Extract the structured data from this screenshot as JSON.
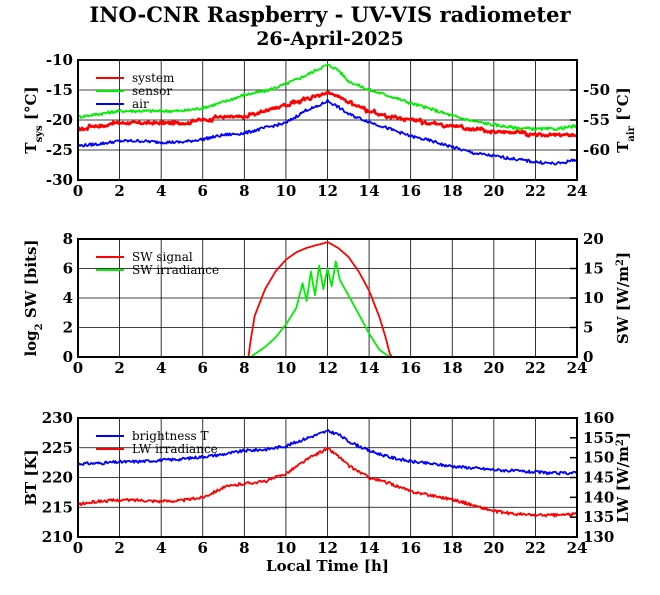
{
  "title": "INO-CNR Raspberry - UV-VIS radiometer",
  "subtitle": "26-April-2025",
  "chart_data": [
    {
      "type": "line",
      "panel": "temperatures",
      "xlabel": "",
      "xlim": [
        0,
        24
      ],
      "xticks": [
        "0",
        "2",
        "4",
        "6",
        "8",
        "10",
        "12",
        "14",
        "16",
        "18",
        "20",
        "22",
        "24"
      ],
      "ylabel_left": "T",
      "ylabel_left_sub": "sys",
      "ylabel_left_unit": "[°C]",
      "ylim_left": [
        -30,
        -10
      ],
      "yticks_left": [
        "-30",
        "-25",
        "-20",
        "-15",
        "-10"
      ],
      "ylabel_right": "T",
      "ylabel_right_sub": "air",
      "ylabel_right_unit": "[°C]",
      "ylim_right": [
        -65,
        -45
      ],
      "yticks_right": [
        "-60",
        "-55",
        "-50"
      ],
      "grid": true,
      "legend_position": "top-left",
      "series": [
        {
          "name": "system",
          "color": "#ff0000",
          "axis": "left",
          "step": true,
          "x": [
            0,
            1,
            2,
            3,
            4,
            5,
            6,
            7,
            8,
            9,
            10,
            11,
            11.5,
            12,
            12.5,
            13,
            14,
            15,
            16,
            17,
            18,
            19,
            20,
            21,
            22,
            23,
            24
          ],
          "y": [
            -21.5,
            -21,
            -20.5,
            -20.5,
            -20.5,
            -20.5,
            -20,
            -19.5,
            -19.5,
            -18.5,
            -17.5,
            -16.5,
            -16,
            -15.5,
            -16,
            -17,
            -18.5,
            -19.5,
            -20,
            -20.5,
            -21,
            -21.5,
            -22,
            -22,
            -22.5,
            -22.5,
            -22.5
          ]
        },
        {
          "name": "sensor",
          "color": "#00ee00",
          "axis": "left",
          "x": [
            0,
            1,
            2,
            3,
            4,
            5,
            6,
            7,
            8,
            9,
            10,
            11,
            11.5,
            12,
            12.5,
            13,
            14,
            15,
            16,
            17,
            18,
            19,
            20,
            21,
            22,
            23,
            24
          ],
          "y": [
            -19.5,
            -19,
            -18.5,
            -18.5,
            -18.5,
            -18.5,
            -18,
            -17,
            -15.8,
            -15.2,
            -14,
            -12.5,
            -11.6,
            -10.8,
            -11.6,
            -13.5,
            -15,
            -16,
            -17.2,
            -18.2,
            -19.3,
            -20.2,
            -20.8,
            -21.3,
            -21.5,
            -21.5,
            -21
          ]
        },
        {
          "name": "air",
          "color": "#0000ff",
          "axis": "right",
          "x": [
            0,
            1,
            2,
            3,
            4,
            5,
            6,
            7,
            8,
            9,
            10,
            11,
            11.5,
            12,
            12.5,
            13,
            14,
            15,
            16,
            17,
            18,
            19,
            20,
            21,
            22,
            23,
            23.5,
            24
          ],
          "y": [
            -59.3,
            -59,
            -58.5,
            -58.5,
            -58.7,
            -58.7,
            -58.2,
            -57.5,
            -57.2,
            -56.3,
            -55.5,
            -53.3,
            -52.8,
            -51.8,
            -52.8,
            -54,
            -55.3,
            -56.5,
            -57.7,
            -58.5,
            -59.5,
            -60.5,
            -61,
            -61.5,
            -62,
            -62.3,
            -62,
            -61.5
          ]
        }
      ]
    },
    {
      "type": "line",
      "panel": "shortwave",
      "xlabel": "",
      "xlim": [
        0,
        24
      ],
      "xticks": [
        "0",
        "2",
        "4",
        "6",
        "8",
        "10",
        "12",
        "14",
        "16",
        "18",
        "20",
        "22",
        "24"
      ],
      "ylabel_left": "log",
      "ylabel_left_sub": "2",
      "ylabel_left_unit": "SW [bits]",
      "ylim_left": [
        0,
        8
      ],
      "yticks_left": [
        "0",
        "2",
        "4",
        "6",
        "8"
      ],
      "ylabel_right": "SW [W/m",
      "ylabel_right_sup": "2",
      "ylabel_right_unit": "]",
      "ylim_right": [
        0,
        20
      ],
      "yticks_right": [
        "0",
        "5",
        "10",
        "15",
        "20"
      ],
      "grid": true,
      "legend_position": "top-left",
      "series": [
        {
          "name": "SW signal",
          "color": "#ff0000",
          "axis": "left",
          "x": [
            0,
            8.2,
            8.3,
            8.5,
            9,
            9.5,
            10,
            10.5,
            11,
            11.5,
            11.8,
            12,
            12.5,
            13,
            13.5,
            14,
            14.5,
            14.8,
            15,
            15.1,
            24
          ],
          "y": [
            0,
            0,
            1.1,
            2.8,
            4.6,
            5.8,
            6.6,
            7.1,
            7.4,
            7.6,
            7.7,
            7.8,
            7.4,
            6.8,
            5.8,
            4.5,
            2.7,
            1.3,
            0.2,
            0,
            0
          ]
        },
        {
          "name": "SW irradiance",
          "color": "#00ee00",
          "axis": "right",
          "x": [
            0,
            8.3,
            9,
            9.5,
            10,
            10.5,
            10.8,
            11,
            11.2,
            11.4,
            11.6,
            11.8,
            12,
            12.2,
            12.4,
            12.6,
            13,
            13.5,
            14,
            14.5,
            15,
            24
          ],
          "y": [
            0,
            0,
            1.7,
            3.3,
            5.5,
            8.3,
            12.5,
            9.5,
            14.5,
            10.5,
            15.5,
            11.5,
            15,
            12,
            16.2,
            13,
            10.5,
            7.3,
            4,
            1.2,
            0,
            0
          ]
        }
      ]
    },
    {
      "type": "line",
      "panel": "longwave",
      "xlabel": "Local Time [h]",
      "xlim": [
        0,
        24
      ],
      "xticks": [
        "0",
        "2",
        "4",
        "6",
        "8",
        "10",
        "12",
        "14",
        "16",
        "18",
        "20",
        "22",
        "24"
      ],
      "ylabel_left": "BT [K]",
      "ylim_left": [
        210,
        230
      ],
      "yticks_left": [
        "210",
        "215",
        "220",
        "225",
        "230"
      ],
      "ylabel_right": "LW [W/m",
      "ylabel_right_sup": "2",
      "ylabel_right_unit": "]",
      "ylim_right": [
        130,
        160
      ],
      "yticks_right": [
        "130",
        "135",
        "140",
        "145",
        "150",
        "155",
        "160"
      ],
      "grid": true,
      "legend_position": "top-left",
      "series": [
        {
          "name": "brightness T",
          "color": "#0000ff",
          "axis": "left",
          "x": [
            0,
            1,
            2,
            3,
            4,
            5,
            6,
            7,
            8,
            9,
            10,
            11,
            11.5,
            12,
            12.5,
            13,
            14,
            15,
            16,
            17,
            18,
            19,
            20,
            21,
            22,
            23,
            24
          ],
          "y": [
            222.3,
            222.4,
            222.6,
            222.7,
            222.9,
            223.1,
            223.5,
            223.9,
            224.5,
            224.7,
            225.3,
            226.6,
            227.2,
            227.8,
            227.3,
            226.1,
            224.5,
            223.4,
            222.7,
            222.3,
            221.9,
            221.6,
            221.3,
            221.1,
            220.9,
            220.7,
            220.8
          ]
        },
        {
          "name": "LW irradiance",
          "color": "#ff0000",
          "axis": "right",
          "x": [
            0,
            1,
            2,
            3,
            4,
            5,
            6,
            7,
            8,
            9,
            10,
            11,
            11.5,
            12,
            12.5,
            13,
            14,
            15,
            16,
            17,
            18,
            19,
            20,
            21,
            22,
            23,
            24
          ],
          "y": [
            138.2,
            139,
            139.3,
            139.3,
            139,
            139.2,
            140,
            142.5,
            143.5,
            144,
            146,
            149.5,
            151,
            152.3,
            150.5,
            148,
            145,
            143.5,
            141.5,
            140.5,
            139.5,
            138,
            136.5,
            135.8,
            135.5,
            135.5,
            135.8
          ]
        }
      ]
    }
  ]
}
